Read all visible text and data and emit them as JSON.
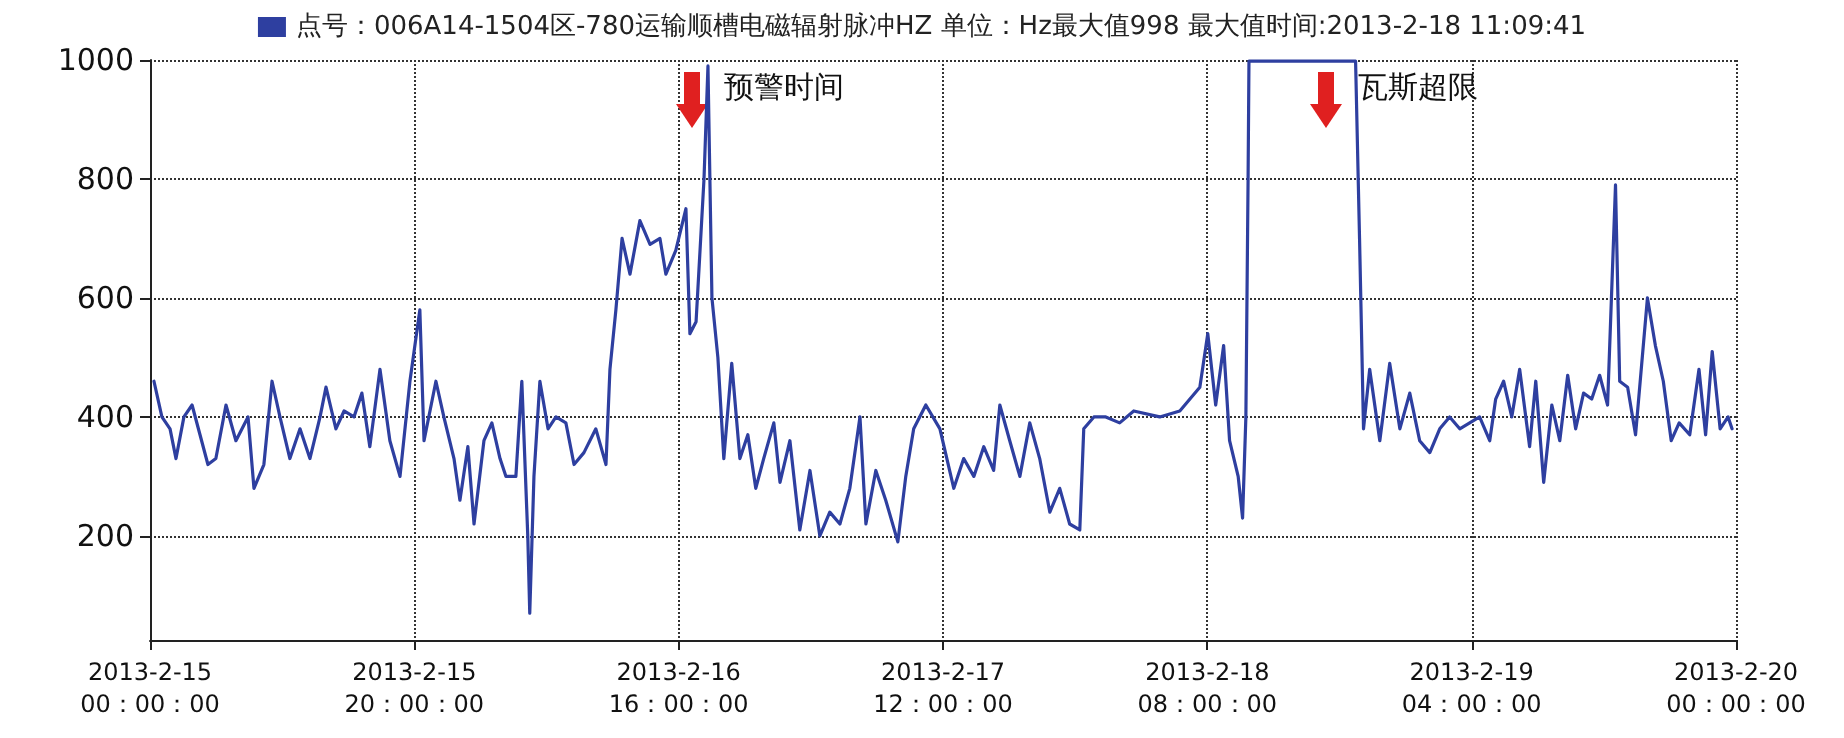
{
  "chart_data": {
    "type": "line",
    "legend": "top",
    "grid": true,
    "marker": "none",
    "line_style": "solid",
    "xlim": [
      "2013-02-15T00:00",
      "2013-02-20T00:00"
    ],
    "xticks": [
      {
        "value": "2013-02-15T00:00",
        "label": "2013-2-15\n00：00：00"
      },
      {
        "value": "2013-02-15T20:00",
        "label": "2013-2-15\n20：00：00"
      },
      {
        "value": "2013-02-16T16:00",
        "label": "2013-2-16\n16：00：00"
      },
      {
        "value": "2013-02-17T12:00",
        "label": "2013-2-17\n12：00：00"
      },
      {
        "value": "2013-02-18T08:00",
        "label": "2013-2-18\n08：00：00"
      },
      {
        "value": "2013-02-19T04:00",
        "label": "2013-2-19\n04：00：00"
      },
      {
        "value": "2013-02-20T00:00",
        "label": "2013-2-20\n00：00：00"
      }
    ],
    "ylim": [
      25,
      1000
    ],
    "yticks": [
      200,
      400,
      600,
      800,
      1000
    ],
    "annotations": [
      "预警时间",
      "瓦斯超限"
    ],
    "x": [
      "2013-02-15T00:18",
      "2013-02-15T00:54",
      "2013-02-15T01:31",
      "2013-02-15T01:58",
      "2013-02-15T02:34",
      "2013-02-15T03:11",
      "2013-02-15T03:47",
      "2013-02-15T04:23",
      "2013-02-15T04:59",
      "2013-02-15T05:45",
      "2013-02-15T06:30",
      "2013-02-15T07:25",
      "2013-02-15T07:52",
      "2013-02-15T08:37",
      "2013-02-15T09:14",
      "2013-02-15T09:50",
      "2013-02-15T10:35",
      "2013-02-15T11:21",
      "2013-02-15T12:06",
      "2013-02-15T12:52",
      "2013-02-15T13:19",
      "2013-02-15T14:04",
      "2013-02-15T14:41",
      "2013-02-15T15:26",
      "2013-02-15T16:02",
      "2013-02-15T16:38",
      "2013-02-15T17:24",
      "2013-02-15T18:09",
      "2013-02-15T18:55",
      "2013-02-15T19:40",
      "2013-02-15T20:25",
      "2013-02-15T20:44",
      "2013-02-15T21:38",
      "2013-02-15T22:14",
      "2013-02-15T23:00",
      "2013-02-15T23:27",
      "2013-02-16T00:03",
      "2013-02-16T00:31",
      "2013-02-16T01:16",
      "2013-02-16T01:52",
      "2013-02-16T02:29",
      "2013-02-16T02:56",
      "2013-02-16T03:41",
      "2013-02-16T04:08",
      "2013-02-16T04:35",
      "2013-02-16T04:44",
      "2013-02-16T05:03",
      "2013-02-16T05:30",
      "2013-02-16T06:07",
      "2013-02-16T06:43",
      "2013-02-16T07:28",
      "2013-02-16T08:05",
      "2013-02-16T08:50",
      "2013-02-16T09:44",
      "2013-02-16T10:30",
      "2013-02-16T10:48",
      "2013-02-16T11:15",
      "2013-02-16T11:43",
      "2013-02-16T12:19",
      "2013-02-16T13:04",
      "2013-02-16T13:50",
      "2013-02-16T14:35",
      "2013-02-16T15:02",
      "2013-02-16T15:47",
      "2013-02-16T16:33",
      "2013-02-16T16:51",
      "2013-02-16T17:19",
      "2013-02-16T17:55",
      "2013-02-16T18:13",
      "2013-02-16T18:31",
      "2013-02-16T18:58",
      "2013-02-16T19:25",
      "2013-02-16T20:01",
      "2013-02-16T20:38",
      "2013-02-16T21:14",
      "2013-02-16T21:50",
      "2013-02-16T22:26",
      "2013-02-16T23:12",
      "2013-02-16T23:40",
      "2013-02-17T00:25",
      "2013-02-17T01:10",
      "2013-02-17T01:56",
      "2013-02-17T02:41",
      "2013-02-17T03:26",
      "2013-02-17T04:12",
      "2013-02-17T04:57",
      "2013-02-17T05:43",
      "2013-02-17T06:10",
      "2013-02-17T06:55",
      "2013-02-17T07:40",
      "2013-02-17T08:35",
      "2013-02-17T09:11",
      "2013-02-17T09:47",
      "2013-02-17T10:42",
      "2013-02-17T11:46",
      "2013-02-17T12:49",
      "2013-02-17T13:34",
      "2013-02-17T14:20",
      "2013-02-17T15:05",
      "2013-02-17T15:50",
      "2013-02-17T16:18",
      "2013-02-17T17:03",
      "2013-02-17T17:49",
      "2013-02-17T18:34",
      "2013-02-17T19:19",
      "2013-02-17T20:05",
      "2013-02-17T20:50",
      "2013-02-17T21:35",
      "2013-02-17T22:21",
      "2013-02-17T22:39",
      "2013-02-17T23:25",
      "2013-02-18T00:19",
      "2013-02-18T01:22",
      "2013-02-18T02:26",
      "2013-02-18T04:24",
      "2013-02-18T05:55",
      "2013-02-18T07:26",
      "2013-02-18T08:02",
      "2013-02-18T08:38",
      "2013-02-18T09:14",
      "2013-02-18T09:41",
      "2013-02-18T10:20",
      "2013-02-18T10:40",
      "2013-02-18T10:55",
      "2013-02-18T11:05",
      "2013-02-18T11:09",
      "2013-02-18T16:30",
      "2013-02-18T19:13",
      "2013-02-18T19:31",
      "2013-02-18T19:49",
      "2013-02-18T20:17",
      "2013-02-18T21:03",
      "2013-02-18T21:48",
      "2013-02-18T22:34",
      "2013-02-18T23:19",
      "2013-02-19T00:04",
      "2013-02-19T00:50",
      "2013-02-19T01:35",
      "2013-02-19T02:20",
      "2013-02-19T03:06",
      "2013-02-19T03:51",
      "2013-02-19T04:36",
      "2013-02-19T05:22",
      "2013-02-19T05:49",
      "2013-02-19T06:25",
      "2013-02-19T07:02",
      "2013-02-19T07:38",
      "2013-02-19T08:23",
      "2013-02-19T08:51",
      "2013-02-19T09:27",
      "2013-02-19T10:04",
      "2013-02-19T10:40",
      "2013-02-19T11:16",
      "2013-02-19T11:52",
      "2013-02-19T12:28",
      "2013-02-19T13:05",
      "2013-02-19T13:41",
      "2013-02-19T14:17",
      "2013-02-19T14:53",
      "2013-02-19T15:12",
      "2013-02-19T15:48",
      "2013-02-19T16:24",
      "2013-02-19T17:18",
      "2013-02-19T17:54",
      "2013-02-19T18:30",
      "2013-02-19T19:06",
      "2013-02-19T19:42",
      "2013-02-19T20:30",
      "2013-02-19T21:12",
      "2013-02-19T21:42",
      "2013-02-19T22:12",
      "2013-02-19T22:48",
      "2013-02-19T23:24",
      "2013-02-19T23:42"
    ],
    "series": [
      {
        "name": "点号：006A14-1504区-780运输顺槽电磁辐射脉冲HZ 单位：Hz最大值998 最大值时间:2013-2-18 11:09:41",
        "color": "#2e3fa0",
        "values": [
          460,
          400,
          380,
          330,
          400,
          420,
          370,
          320,
          330,
          420,
          360,
          400,
          280,
          320,
          460,
          400,
          330,
          380,
          330,
          400,
          450,
          380,
          410,
          400,
          440,
          350,
          480,
          360,
          300,
          460,
          580,
          360,
          460,
          400,
          330,
          260,
          350,
          220,
          360,
          390,
          330,
          300,
          300,
          460,
          200,
          70,
          300,
          460,
          380,
          400,
          390,
          320,
          340,
          380,
          320,
          480,
          580,
          700,
          640,
          730,
          690,
          700,
          640,
          680,
          750,
          540,
          560,
          800,
          990,
          600,
          500,
          330,
          490,
          330,
          370,
          280,
          330,
          390,
          290,
          360,
          210,
          310,
          200,
          240,
          220,
          280,
          400,
          220,
          310,
          260,
          190,
          300,
          380,
          420,
          380,
          280,
          330,
          300,
          350,
          310,
          420,
          360,
          300,
          390,
          330,
          240,
          280,
          220,
          210,
          380,
          400,
          400,
          390,
          410,
          400,
          410,
          450,
          540,
          420,
          520,
          360,
          300,
          230,
          400,
          800,
          998,
          998,
          998,
          700,
          380,
          480,
          360,
          490,
          380,
          440,
          360,
          340,
          380,
          400,
          380,
          390,
          400,
          360,
          430,
          460,
          400,
          480,
          350,
          460,
          290,
          420,
          360,
          470,
          380,
          440,
          430,
          470,
          420,
          790,
          460,
          450,
          370,
          600,
          520,
          460,
          360,
          390,
          370,
          480,
          370,
          510,
          380,
          400,
          380
        ]
      }
    ]
  }
}
